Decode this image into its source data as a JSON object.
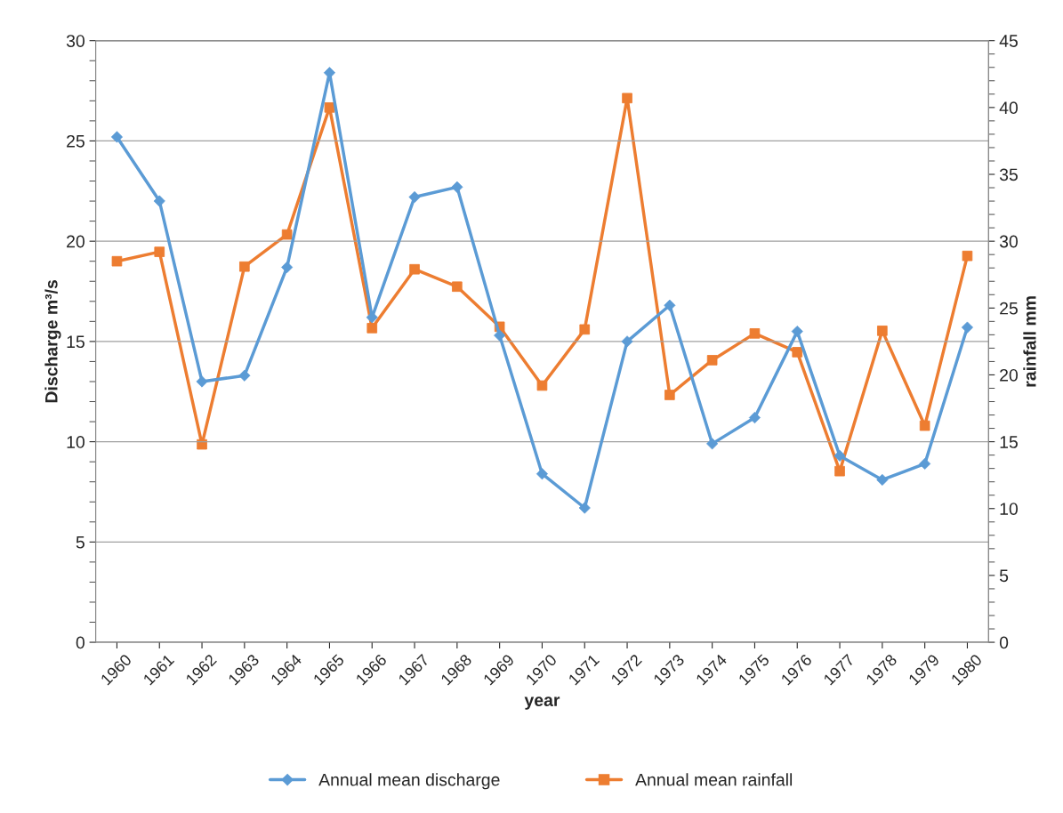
{
  "chart_data": {
    "type": "line",
    "xlabel": "year",
    "ylabel": "Discharge m³/s",
    "y2label": "rainfall mm",
    "categories": [
      "1960",
      "1961",
      "1962",
      "1963",
      "1964",
      "1965",
      "1966",
      "1967",
      "1968",
      "1969",
      "1970",
      "1971",
      "1972",
      "1973",
      "1974",
      "1975",
      "1976",
      "1977",
      "1978",
      "1979",
      "1980"
    ],
    "series": [
      {
        "name": "Annual mean discharge",
        "color": "#5b9bd5",
        "marker": "diamond",
        "values": [
          25.2,
          22.0,
          13.0,
          13.3,
          18.7,
          28.4,
          16.2,
          22.2,
          22.7,
          15.3,
          8.4,
          6.7,
          15.0,
          16.8,
          9.9,
          11.2,
          15.5,
          9.3,
          8.1,
          8.9,
          15.7
        ]
      },
      {
        "name": "Annual mean rainfall",
        "color": "#ed7d31",
        "marker": "square",
        "axis": "y2",
        "values": [
          28.5,
          29.2,
          14.8,
          28.1,
          30.5,
          40.0,
          23.5,
          27.9,
          26.6,
          23.6,
          19.2,
          23.4,
          40.7,
          18.5,
          21.1,
          23.1,
          21.7,
          12.8,
          23.3,
          16.2,
          28.9
        ]
      }
    ],
    "ylim": [
      0,
      30
    ],
    "yticks": [
      0,
      5,
      10,
      15,
      20,
      25,
      30
    ],
    "y2lim": [
      0,
      45
    ],
    "y2ticks": [
      0,
      5,
      10,
      15,
      20,
      25,
      30,
      35,
      40,
      45
    ],
    "grid": "y",
    "legend": "bottom"
  }
}
